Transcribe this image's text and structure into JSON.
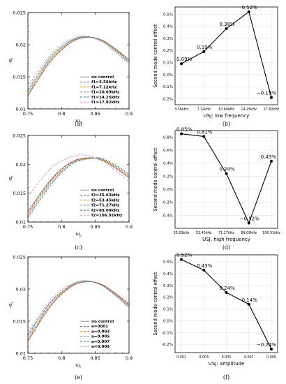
{
  "chart_data": [
    {
      "panel": "(a)",
      "type": "line",
      "xlabel": "ω_r",
      "ylabel": "-α_i",
      "xlim": [
        0.75,
        0.9
      ],
      "ylim": [
        0.01,
        0.025
      ],
      "xticks": [
        "0.75",
        "0.8",
        "0.85",
        "0.9"
      ],
      "yticks": [
        "0.01",
        "0.015",
        "0.02",
        "0.025"
      ],
      "legend_position": "bottom-right",
      "series": [
        {
          "name": "no control",
          "color": "#888888",
          "dash": "solid",
          "peak_x": 0.842,
          "peak_y": 0.02115,
          "points": [
            [
              0.75,
              0.01205
            ],
            [
              0.78,
              0.0169
            ],
            [
              0.8,
              0.0192
            ],
            [
              0.82,
              0.0207
            ],
            [
              0.842,
              0.02115
            ],
            [
              0.86,
              0.0207
            ],
            [
              0.88,
              0.01935
            ],
            [
              0.9,
              0.01765
            ]
          ]
        },
        {
          "name": "f1=3.56kHz",
          "color": "#d62728",
          "dash": "dashed",
          "peak_x": 0.841,
          "peak_y": 0.02118,
          "points": [
            [
              0.75,
              0.0122
            ],
            [
              0.78,
              0.017
            ],
            [
              0.8,
              0.01925
            ],
            [
              0.82,
              0.02075
            ],
            [
              0.841,
              0.02118
            ],
            [
              0.86,
              0.0207
            ],
            [
              0.88,
              0.0193
            ],
            [
              0.9,
              0.0175
            ]
          ]
        },
        {
          "name": "f1=7.12kHz",
          "color": "#ff7f0e",
          "dash": "dashed",
          "peak_x": 0.84,
          "peak_y": 0.02121,
          "points": [
            [
              0.75,
              0.01245
            ],
            [
              0.78,
              0.0172
            ],
            [
              0.8,
              0.0194
            ],
            [
              0.82,
              0.0208
            ],
            [
              0.84,
              0.02121
            ],
            [
              0.86,
              0.02065
            ],
            [
              0.88,
              0.0192
            ],
            [
              0.9,
              0.0174
            ]
          ]
        },
        {
          "name": "f1=10.69kHz",
          "color": "#2ca02c",
          "dash": "dashed",
          "peak_x": 0.839,
          "peak_y": 0.02125,
          "points": [
            [
              0.75,
              0.0127
            ],
            [
              0.78,
              0.0174
            ],
            [
              0.8,
              0.0196
            ],
            [
              0.82,
              0.0209
            ],
            [
              0.839,
              0.02125
            ],
            [
              0.86,
              0.0206
            ],
            [
              0.88,
              0.0191
            ],
            [
              0.9,
              0.0173
            ]
          ]
        },
        {
          "name": "f1=14.25kHz",
          "color": "#1f77b4",
          "dash": "dashed",
          "peak_x": 0.838,
          "peak_y": 0.02129,
          "points": [
            [
              0.75,
              0.013
            ],
            [
              0.78,
              0.0176
            ],
            [
              0.8,
              0.0197
            ],
            [
              0.82,
              0.02095
            ],
            [
              0.838,
              0.02129
            ],
            [
              0.86,
              0.02055
            ],
            [
              0.88,
              0.019
            ],
            [
              0.9,
              0.0172
            ]
          ]
        },
        {
          "name": "f1=17.82kHz",
          "color": "#e377c2",
          "dash": "dashed",
          "peak_x": 0.835,
          "peak_y": 0.02135,
          "points": [
            [
              0.75,
              0.0135
            ],
            [
              0.78,
              0.018
            ],
            [
              0.8,
              0.02
            ],
            [
              0.82,
              0.0211
            ],
            [
              0.835,
              0.02135
            ],
            [
              0.86,
              0.0204
            ],
            [
              0.88,
              0.0188
            ],
            [
              0.9,
              0.017
            ]
          ]
        }
      ]
    },
    {
      "panel": "(b)",
      "type": "line",
      "xlabel": "USJ: low frequency",
      "ylabel": "Second mode control effect",
      "categories": [
        "3.56kHz",
        "7.12kHz",
        "10.69kHz",
        "14.25kHz",
        "17.82kHz"
      ],
      "values": [
        0.09,
        0.19,
        0.38,
        0.52,
        -0.19
      ],
      "point_labels": [
        "0.09%",
        "0.19%",
        "0.38%",
        "0.52%",
        "−0.19%"
      ],
      "yticks": [
        "-0.2%",
        "-0.1%",
        "0.0%",
        "0.1%",
        "0.2%",
        "0.3%",
        "0.4%",
        "0.5%"
      ],
      "ylim": [
        -0.25,
        0.56
      ],
      "grid": true
    },
    {
      "panel": "(c)",
      "type": "line",
      "xlabel": "ω_r",
      "ylabel": "-α_i",
      "xlim": [
        0.75,
        0.9
      ],
      "ylim": [
        0.01,
        0.025
      ],
      "xticks": [
        "0.75",
        "0.8",
        "0.85",
        "0.9"
      ],
      "yticks": [
        "0.01",
        "0.015",
        "0.02",
        "0.025"
      ],
      "legend_position": "bottom-right",
      "series": [
        {
          "name": "no control",
          "color": "#888888",
          "dash": "solid",
          "peak_x": 0.842,
          "peak_y": 0.02115,
          "points": [
            [
              0.75,
              0.01185
            ],
            [
              0.78,
              0.0168
            ],
            [
              0.8,
              0.0192
            ],
            [
              0.82,
              0.0207
            ],
            [
              0.842,
              0.02115
            ],
            [
              0.86,
              0.0207
            ],
            [
              0.88,
              0.01935
            ],
            [
              0.9,
              0.01765
            ]
          ]
        },
        {
          "name": "f2=35.63kHz",
          "color": "#d62728",
          "dash": "dashed",
          "peak_x": 0.843,
          "peak_y": 0.02112,
          "points": [
            [
              0.75,
              0.0116
            ],
            [
              0.78,
              0.0166
            ],
            [
              0.8,
              0.0191
            ],
            [
              0.82,
              0.02065
            ],
            [
              0.843,
              0.02112
            ],
            [
              0.86,
              0.02075
            ],
            [
              0.88,
              0.0194
            ],
            [
              0.9,
              0.0177
            ]
          ]
        },
        {
          "name": "f2=53.45kHz",
          "color": "#ff7f0e",
          "dash": "dashed",
          "peak_x": 0.845,
          "peak_y": 0.0211,
          "points": [
            [
              0.75,
              0.0113
            ],
            [
              0.78,
              0.0164
            ],
            [
              0.8,
              0.0189
            ],
            [
              0.82,
              0.02055
            ],
            [
              0.845,
              0.0211
            ],
            [
              0.86,
              0.0208
            ],
            [
              0.88,
              0.0196
            ],
            [
              0.9,
              0.0179
            ]
          ]
        },
        {
          "name": "f2=71.27kHz",
          "color": "#2ca02c",
          "dash": "dashed",
          "peak_x": 0.846,
          "peak_y": 0.0211,
          "points": [
            [
              0.75,
              0.011
            ],
            [
              0.78,
              0.0161
            ],
            [
              0.8,
              0.0187
            ],
            [
              0.82,
              0.02045
            ],
            [
              0.846,
              0.0211
            ],
            [
              0.86,
              0.0209
            ],
            [
              0.88,
              0.0197
            ],
            [
              0.9,
              0.0181
            ]
          ]
        },
        {
          "name": "f2=89.09kHz",
          "color": "#1f77b4",
          "dash": "dashed",
          "peak_x": 0.848,
          "peak_y": 0.02108,
          "points": [
            [
              0.75,
              0.0107
            ],
            [
              0.78,
              0.0158
            ],
            [
              0.8,
              0.0185
            ],
            [
              0.82,
              0.02035
            ],
            [
              0.848,
              0.02108
            ],
            [
              0.86,
              0.021
            ],
            [
              0.88,
              0.0199
            ],
            [
              0.9,
              0.0183
            ]
          ]
        },
        {
          "name": "f2=106.91kHz",
          "color": "#e377c2",
          "dash": "dashed",
          "peak_x": 0.83,
          "peak_y": 0.02165,
          "points": [
            [
              0.75,
              0.0145
            ],
            [
              0.78,
              0.0188
            ],
            [
              0.8,
              0.0206
            ],
            [
              0.83,
              0.02165
            ],
            [
              0.86,
              0.0206
            ],
            [
              0.88,
              0.0189
            ],
            [
              0.9,
              0.0171
            ]
          ]
        }
      ]
    },
    {
      "panel": "(d)",
      "type": "line",
      "xlabel": "USJ: high frequency",
      "ylabel": "Second mode control effect",
      "categories": [
        "35.63kHz",
        "53.45kHz",
        "71.27kHz",
        "89.09kHz",
        "106.91kHz"
      ],
      "values": [
        0.85,
        0.81,
        0.24,
        -0.52,
        0.43
      ],
      "point_labels": [
        "0.85%",
        "0.81%",
        "0.24%",
        "−0.52%",
        "0.43%"
      ],
      "yticks": [
        "-0.4%",
        "-0.2%",
        "0.0%",
        "0.2%",
        "0.4%",
        "0.6%",
        "0.8%"
      ],
      "ylim": [
        -0.6,
        0.9
      ],
      "grid": true
    },
    {
      "panel": "(e)",
      "type": "line",
      "xlabel": "ω_r",
      "ylabel": "-α_i",
      "xlim": [
        0.75,
        0.9
      ],
      "ylim": [
        0.01,
        0.025
      ],
      "xticks": [
        "0.75",
        "0.8",
        "0.85",
        "0.9"
      ],
      "yticks": [
        "0.01",
        "0.015",
        "0.02",
        "0.025"
      ],
      "legend_position": "bottom-right",
      "series": [
        {
          "name": "no control",
          "color": "#888888",
          "dash": "solid",
          "peak_x": 0.842,
          "peak_y": 0.02115,
          "points": [
            [
              0.75,
              0.01185
            ],
            [
              0.78,
              0.0168
            ],
            [
              0.8,
              0.0192
            ],
            [
              0.82,
              0.0207
            ],
            [
              0.842,
              0.02115
            ],
            [
              0.86,
              0.0207
            ],
            [
              0.88,
              0.01935
            ],
            [
              0.9,
              0.01765
            ]
          ]
        },
        {
          "name": "a=0001",
          "color": "#d62728",
          "dash": "dashed",
          "peak_x": 0.841,
          "peak_y": 0.02117,
          "points": [
            [
              0.75,
              0.0121
            ],
            [
              0.78,
              0.017
            ],
            [
              0.8,
              0.01925
            ],
            [
              0.82,
              0.02073
            ],
            [
              0.841,
              0.02117
            ],
            [
              0.86,
              0.02068
            ],
            [
              0.88,
              0.0193
            ],
            [
              0.9,
              0.0175
            ]
          ]
        },
        {
          "name": "a=0.003",
          "color": "#ff7f0e",
          "dash": "dashed",
          "peak_x": 0.84,
          "peak_y": 0.0212,
          "points": [
            [
              0.75,
              0.0124
            ],
            [
              0.78,
              0.0171
            ],
            [
              0.8,
              0.0194
            ],
            [
              0.82,
              0.0208
            ],
            [
              0.84,
              0.0212
            ],
            [
              0.86,
              0.02065
            ],
            [
              0.88,
              0.0192
            ],
            [
              0.9,
              0.0174
            ]
          ]
        },
        {
          "name": "a=0.005",
          "color": "#2ca02c",
          "dash": "dashed",
          "peak_x": 0.839,
          "peak_y": 0.02124,
          "points": [
            [
              0.75,
              0.0127
            ],
            [
              0.78,
              0.0174
            ],
            [
              0.8,
              0.0195
            ],
            [
              0.82,
              0.0209
            ],
            [
              0.839,
              0.02124
            ],
            [
              0.86,
              0.0206
            ],
            [
              0.88,
              0.0191
            ],
            [
              0.9,
              0.0173
            ]
          ]
        },
        {
          "name": "a=0.007",
          "color": "#1f77b4",
          "dash": "dashed",
          "peak_x": 0.838,
          "peak_y": 0.02127,
          "points": [
            [
              0.75,
              0.0129
            ],
            [
              0.78,
              0.0175
            ],
            [
              0.8,
              0.0196
            ],
            [
              0.82,
              0.02093
            ],
            [
              0.838,
              0.02127
            ],
            [
              0.86,
              0.02055
            ],
            [
              0.88,
              0.019
            ],
            [
              0.9,
              0.0172
            ]
          ]
        },
        {
          "name": "a=0.009",
          "color": "#e377c2",
          "dash": "dashed",
          "peak_x": 0.837,
          "peak_y": 0.0213,
          "points": [
            [
              0.75,
              0.0133
            ],
            [
              0.78,
              0.0178
            ],
            [
              0.8,
              0.0199
            ],
            [
              0.82,
              0.021
            ],
            [
              0.837,
              0.0213
            ],
            [
              0.86,
              0.0205
            ],
            [
              0.88,
              0.0189
            ],
            [
              0.9,
              0.0171
            ]
          ]
        }
      ]
    },
    {
      "panel": "(f)",
      "type": "line",
      "xlabel": "USJ: amplitude",
      "ylabel": "Second mode control effect",
      "categories": [
        "0.001",
        "0.003",
        "0.005",
        "0.007",
        "0.009"
      ],
      "values": [
        0.52,
        0.43,
        0.24,
        0.14,
        -0.24
      ],
      "point_labels": [
        "0.52%",
        "0.43%",
        "0.24%",
        "0.14%",
        "−0.24%"
      ],
      "yticks": [
        "-0.2%",
        "-0.1%",
        "0.0%",
        "0.1%",
        "0.2%",
        "0.3%",
        "0.4%",
        "0.5%"
      ],
      "ylim": [
        -0.27,
        0.56
      ],
      "grid": true
    }
  ]
}
